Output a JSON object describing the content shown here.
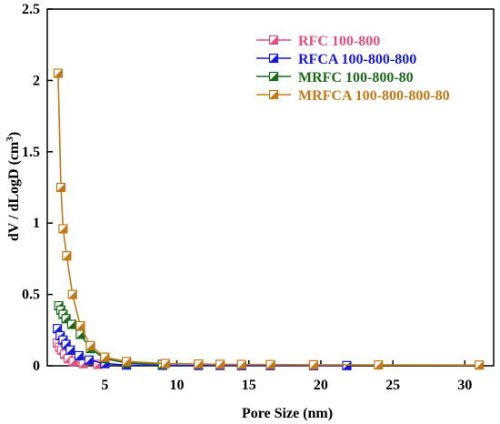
{
  "chart_data": {
    "type": "line",
    "xlabel": "Pore Size (nm)",
    "ylabel_main": "dV / dLogD (cm",
    "ylabel_sup": "3",
    "ylabel_close": ")",
    "xlim": [
      1.0,
      32.0
    ],
    "ylim": [
      0.0,
      2.5
    ],
    "x_ticks": [
      5,
      10,
      15,
      20,
      25,
      30
    ],
    "y_ticks": [
      0,
      0.5,
      1,
      1.5,
      2,
      2.5
    ],
    "x_tick_labels": [
      "5",
      "10",
      "15",
      "20",
      "25",
      "30"
    ],
    "y_tick_labels": [
      "0",
      "0.5",
      "1",
      "1.5",
      "2",
      "2.5"
    ],
    "grid": false,
    "legend_position": "top-right",
    "series": [
      {
        "name": "RFC 100-800",
        "color": "#e0507a",
        "x": [
          1.7,
          1.85,
          2.0,
          2.2,
          2.45,
          2.8,
          3.5,
          4.5
        ],
        "y": [
          0.16,
          0.13,
          0.11,
          0.08,
          0.05,
          0.03,
          0.015,
          0.01
        ]
      },
      {
        "name": "RFCA 100-800-800",
        "color": "#1a1ad0",
        "x": [
          1.7,
          1.9,
          2.1,
          2.3,
          2.6,
          3.2,
          3.9,
          5.0,
          6.5,
          9.0,
          11.5,
          13.0,
          14.5,
          16.5,
          19.5,
          21.8
        ],
        "y": [
          0.26,
          0.21,
          0.18,
          0.15,
          0.11,
          0.07,
          0.04,
          0.015,
          0.005,
          0.003,
          0.002,
          0.002,
          0.001,
          0.001,
          0.001,
          0.001
        ]
      },
      {
        "name": "MRFC 100-800-80",
        "color": "#1e6b1e",
        "x": [
          1.8,
          1.95,
          2.1,
          2.3,
          2.7,
          3.3,
          4.0,
          5.0,
          6.5,
          9.0
        ],
        "y": [
          0.42,
          0.39,
          0.36,
          0.33,
          0.29,
          0.22,
          0.12,
          0.05,
          0.02,
          0.01
        ]
      },
      {
        "name": "MRFCA 100-800-800-80",
        "color": "#c07a18",
        "x": [
          1.75,
          1.95,
          2.1,
          2.35,
          2.75,
          3.3,
          4.0,
          5.0,
          6.5,
          9.2,
          11.5,
          13.0,
          14.5,
          16.5,
          19.5,
          24.0,
          31.0
        ],
        "y": [
          2.05,
          1.25,
          0.96,
          0.77,
          0.5,
          0.28,
          0.14,
          0.06,
          0.03,
          0.015,
          0.012,
          0.01,
          0.009,
          0.008,
          0.007,
          0.006,
          0.005
        ]
      }
    ]
  }
}
